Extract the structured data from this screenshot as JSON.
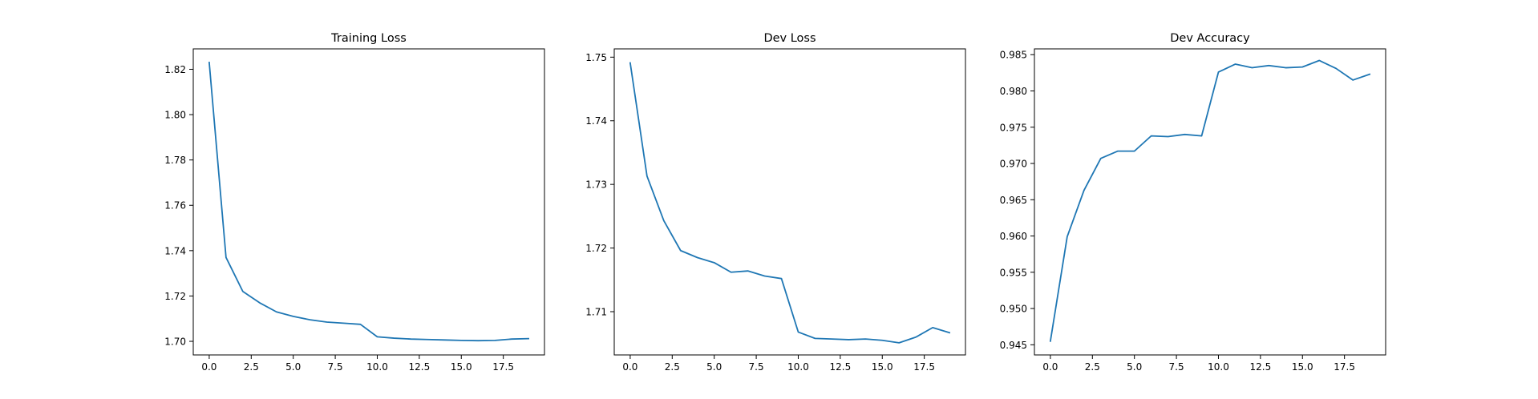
{
  "chart_data": [
    {
      "type": "line",
      "title": "Training Loss",
      "xlabel": "",
      "ylabel": "",
      "xlim": [
        -0.95,
        19.95
      ],
      "ylim": [
        1.694,
        1.829
      ],
      "xticks": [
        0.0,
        2.5,
        5.0,
        7.5,
        10.0,
        12.5,
        15.0,
        17.5
      ],
      "xtick_labels": [
        "0.0",
        "2.5",
        "5.0",
        "7.5",
        "10.0",
        "12.5",
        "15.0",
        "17.5"
      ],
      "yticks": [
        1.7,
        1.72,
        1.74,
        1.76,
        1.78,
        1.8,
        1.82
      ],
      "ytick_labels": [
        "1.70",
        "1.72",
        "1.74",
        "1.76",
        "1.78",
        "1.80",
        "1.82"
      ],
      "grid": false,
      "series": [
        {
          "color": "#1f77b4",
          "x": [
            0,
            1,
            2,
            3,
            4,
            5,
            6,
            7,
            8,
            9,
            10,
            11,
            12,
            13,
            14,
            15,
            16,
            17,
            18,
            19
          ],
          "y": [
            1.823,
            1.737,
            1.722,
            1.717,
            1.713,
            1.711,
            1.7095,
            1.7085,
            1.708,
            1.7075,
            1.702,
            1.7014,
            1.701,
            1.7008,
            1.7006,
            1.7004,
            1.7003,
            1.7004,
            1.701,
            1.7012
          ]
        }
      ]
    },
    {
      "type": "line",
      "title": "Dev Loss",
      "xlabel": "",
      "ylabel": "",
      "xlim": [
        -0.95,
        19.95
      ],
      "ylim": [
        1.7032,
        1.7513
      ],
      "xticks": [
        0.0,
        2.5,
        5.0,
        7.5,
        10.0,
        12.5,
        15.0,
        17.5
      ],
      "xtick_labels": [
        "0.0",
        "2.5",
        "5.0",
        "7.5",
        "10.0",
        "12.5",
        "15.0",
        "17.5"
      ],
      "yticks": [
        1.71,
        1.72,
        1.73,
        1.74,
        1.75
      ],
      "ytick_labels": [
        "1.71",
        "1.72",
        "1.73",
        "1.74",
        "1.75"
      ],
      "grid": false,
      "series": [
        {
          "color": "#1f77b4",
          "x": [
            0,
            1,
            2,
            3,
            4,
            5,
            6,
            7,
            8,
            9,
            10,
            11,
            12,
            13,
            14,
            15,
            16,
            17,
            18,
            19
          ],
          "y": [
            1.7491,
            1.7313,
            1.7243,
            1.7196,
            1.7185,
            1.7177,
            1.7162,
            1.7164,
            1.7156,
            1.7152,
            1.7068,
            1.7058,
            1.7057,
            1.7056,
            1.7057,
            1.7055,
            1.7051,
            1.706,
            1.7075,
            1.7067
          ]
        }
      ]
    },
    {
      "type": "line",
      "title": "Dev Accuracy",
      "xlabel": "",
      "ylabel": "",
      "xlim": [
        -0.95,
        19.95
      ],
      "ylim": [
        0.9436,
        0.9858
      ],
      "xticks": [
        0.0,
        2.5,
        5.0,
        7.5,
        10.0,
        12.5,
        15.0,
        17.5
      ],
      "xtick_labels": [
        "0.0",
        "2.5",
        "5.0",
        "7.5",
        "10.0",
        "12.5",
        "15.0",
        "17.5"
      ],
      "yticks": [
        0.945,
        0.95,
        0.955,
        0.96,
        0.965,
        0.97,
        0.975,
        0.98,
        0.985
      ],
      "ytick_labels": [
        "0.945",
        "0.950",
        "0.955",
        "0.960",
        "0.965",
        "0.970",
        "0.975",
        "0.980",
        "0.985"
      ],
      "grid": false,
      "series": [
        {
          "color": "#1f77b4",
          "x": [
            0,
            1,
            2,
            3,
            4,
            5,
            6,
            7,
            8,
            9,
            10,
            11,
            12,
            13,
            14,
            15,
            16,
            17,
            18,
            19
          ],
          "y": [
            0.9455,
            0.9599,
            0.9663,
            0.9707,
            0.9717,
            0.9717,
            0.9738,
            0.9737,
            0.974,
            0.9738,
            0.9826,
            0.9837,
            0.9832,
            0.9835,
            0.9832,
            0.9833,
            0.9842,
            0.9831,
            0.9815,
            0.9823
          ]
        }
      ]
    }
  ]
}
